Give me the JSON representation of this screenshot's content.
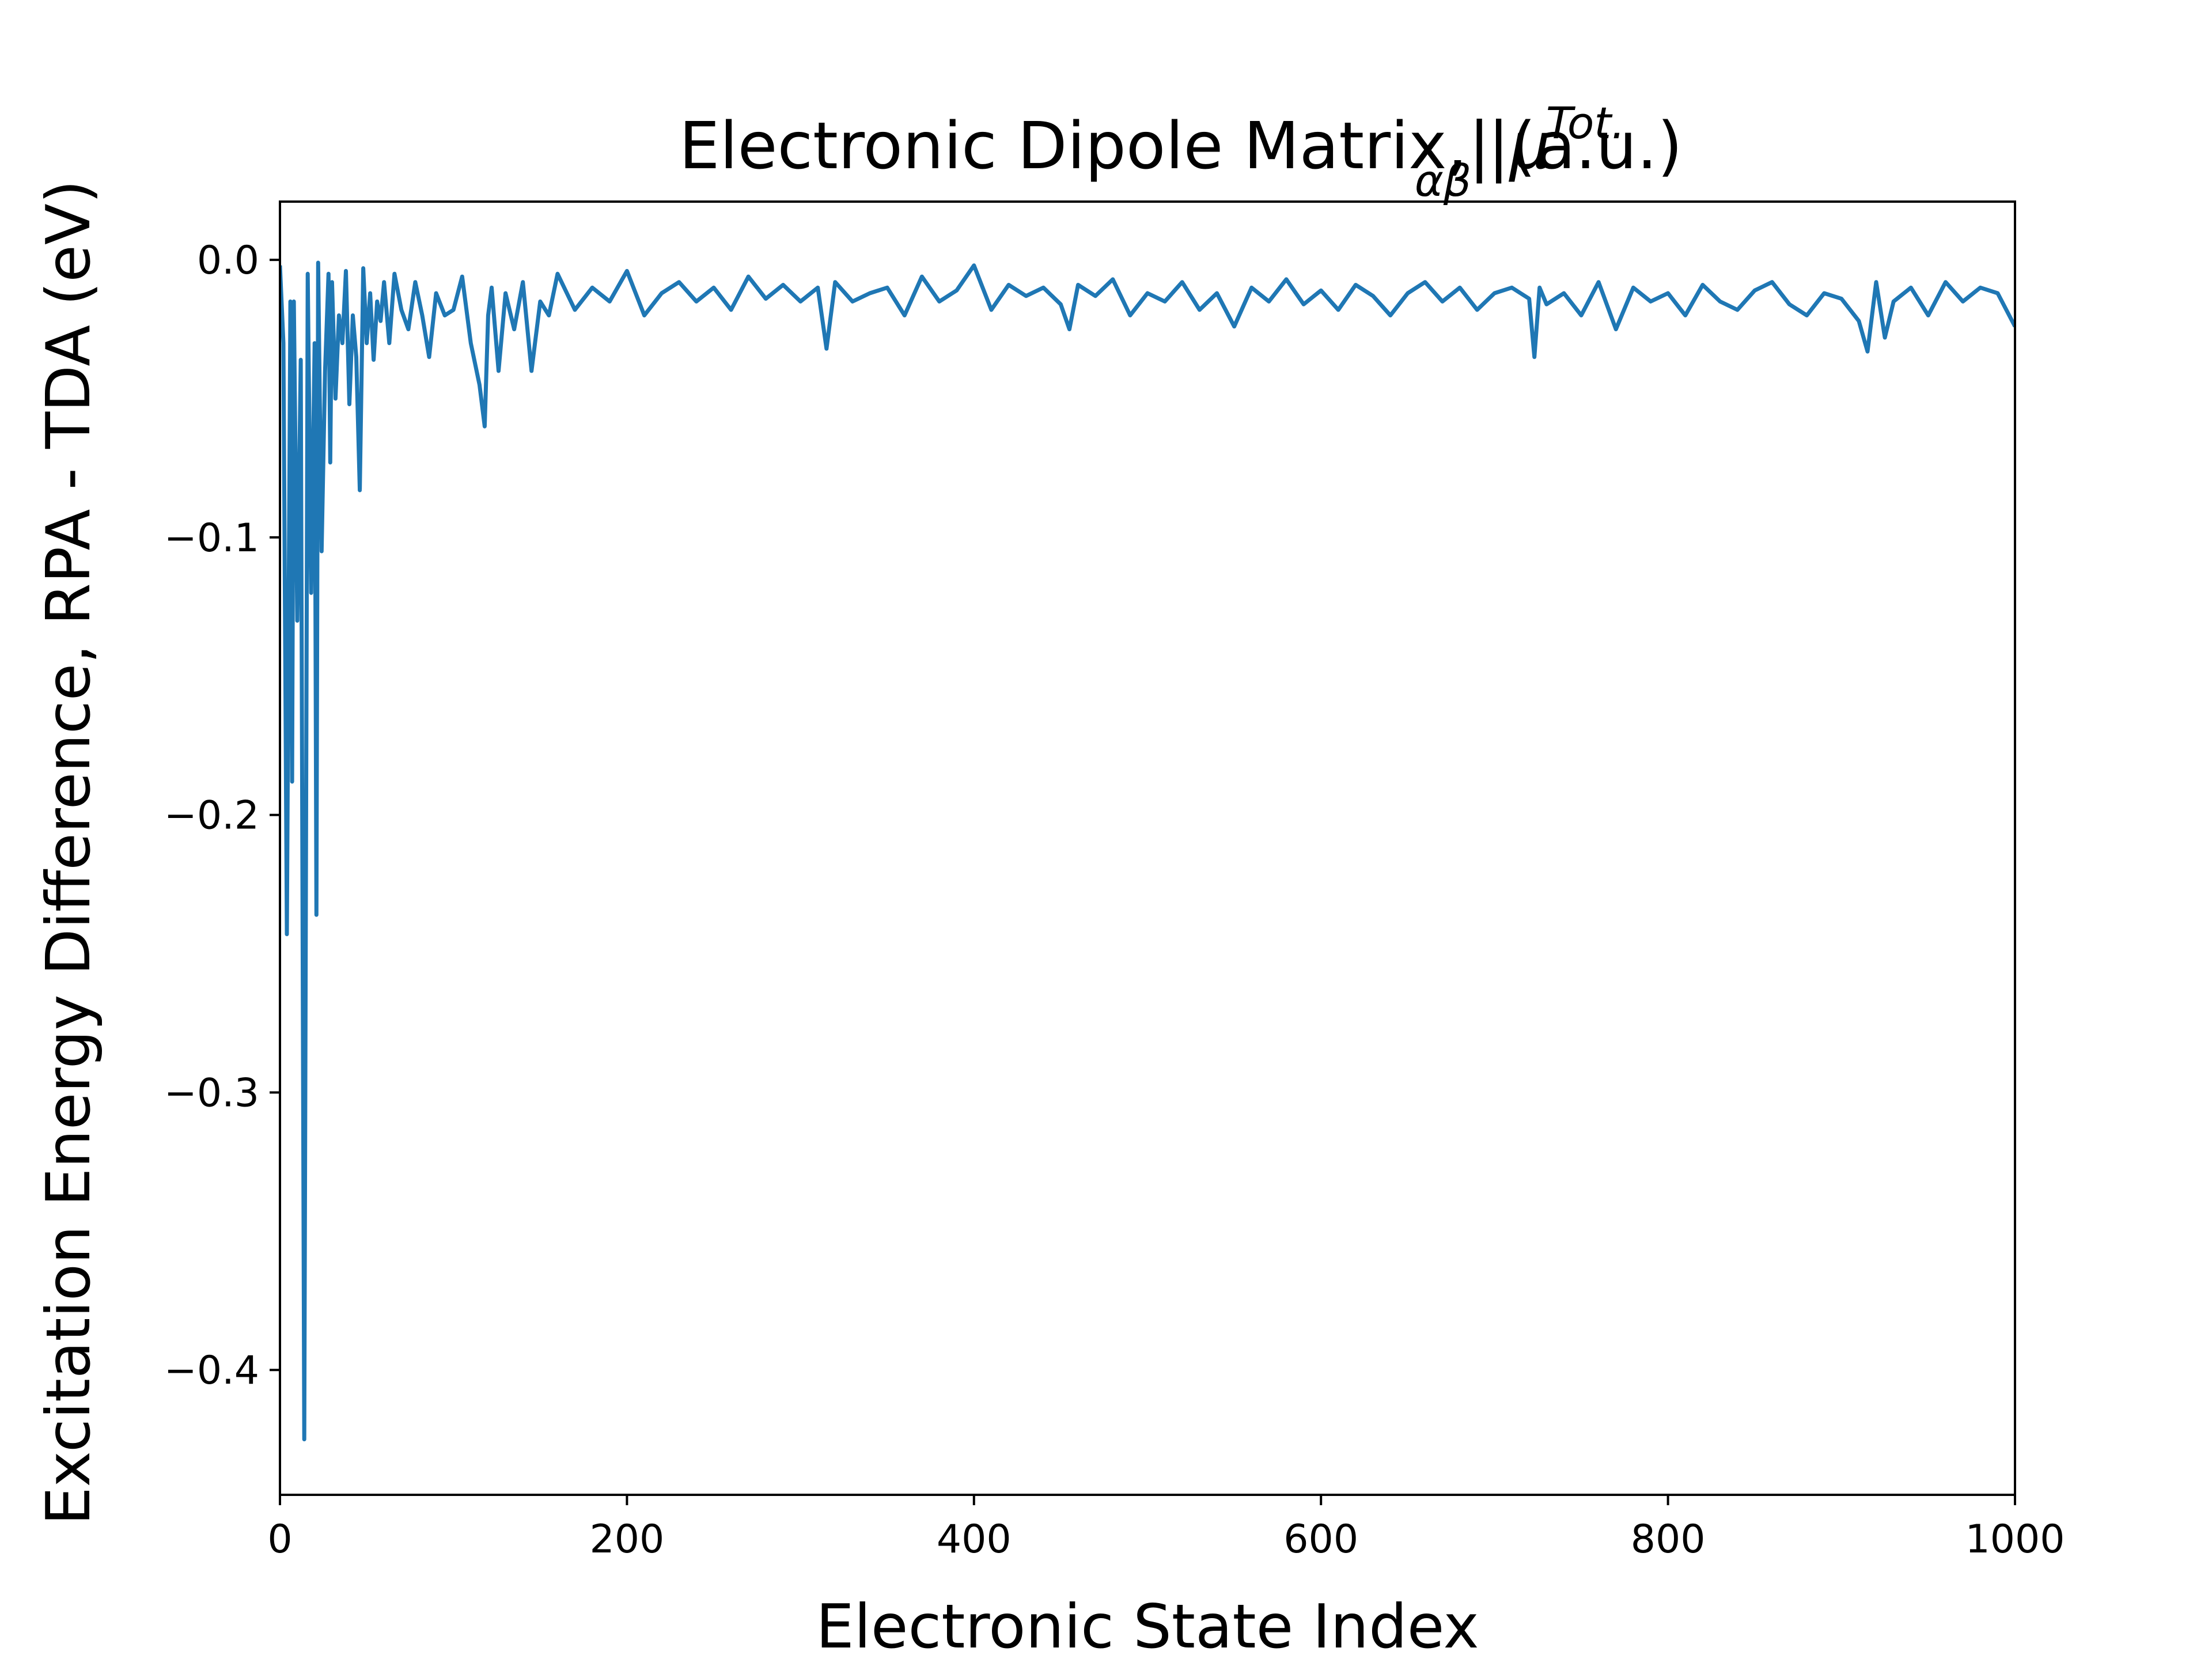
{
  "chart_data": {
    "type": "line",
    "title": {
      "prefix": "Electronic Dipole Matrix, |",
      "symbol": "μ",
      "sub": "αβ",
      "sup": "Tot.",
      "suffix": "| (a.u.)"
    },
    "xlabel": "Electronic State Index",
    "ylabel": "Excitation Energy Difference, RPA - TDA (eV)",
    "xlim": [
      0,
      1000
    ],
    "ylim": [
      -0.445,
      0.021
    ],
    "xticks": [
      0,
      200,
      400,
      600,
      800,
      1000
    ],
    "xtick_labels": [
      "0",
      "200",
      "400",
      "600",
      "800",
      "1000"
    ],
    "yticks": [
      0.0,
      -0.1,
      -0.2,
      -0.3,
      -0.4
    ],
    "ytick_labels": [
      "0.0",
      "−0.1",
      "−0.2",
      "−0.3",
      "−0.4"
    ],
    "grid": false,
    "line_color": "#1f77b4",
    "series": [
      {
        "x": [
          0,
          2,
          4,
          6,
          7,
          8,
          10,
          12,
          14,
          16,
          18,
          20,
          21,
          22,
          24,
          26,
          28,
          29,
          30,
          32,
          34,
          36,
          38,
          40,
          42,
          44,
          46,
          48,
          50,
          52,
          54,
          56,
          58,
          60,
          63,
          66,
          70,
          74,
          78,
          82,
          86,
          90,
          95,
          100,
          105,
          110,
          115,
          118,
          120,
          122,
          126,
          130,
          135,
          140,
          145,
          150,
          155,
          160,
          170,
          180,
          190,
          200,
          210,
          220,
          230,
          240,
          250,
          260,
          270,
          280,
          290,
          300,
          310,
          315,
          320,
          330,
          340,
          350,
          360,
          370,
          380,
          390,
          400,
          410,
          420,
          430,
          440,
          450,
          455,
          460,
          470,
          480,
          490,
          500,
          510,
          520,
          530,
          540,
          550,
          560,
          570,
          580,
          590,
          600,
          610,
          620,
          630,
          640,
          650,
          660,
          670,
          680,
          690,
          700,
          710,
          720,
          723,
          726,
          730,
          740,
          750,
          760,
          770,
          780,
          790,
          800,
          810,
          820,
          830,
          840,
          850,
          860,
          870,
          880,
          890,
          900,
          910,
          915,
          920,
          925,
          930,
          940,
          950,
          960,
          970,
          980,
          990,
          1000
        ],
        "y": [
          -0.002,
          -0.03,
          -0.243,
          -0.015,
          -0.188,
          -0.015,
          -0.13,
          -0.036,
          -0.425,
          -0.005,
          -0.12,
          -0.03,
          -0.236,
          -0.001,
          -0.105,
          -0.04,
          -0.005,
          -0.073,
          -0.008,
          -0.05,
          -0.02,
          -0.03,
          -0.004,
          -0.052,
          -0.02,
          -0.035,
          -0.083,
          -0.003,
          -0.03,
          -0.012,
          -0.036,
          -0.015,
          -0.022,
          -0.008,
          -0.03,
          -0.005,
          -0.018,
          -0.025,
          -0.008,
          -0.02,
          -0.035,
          -0.012,
          -0.02,
          -0.018,
          -0.006,
          -0.03,
          -0.045,
          -0.06,
          -0.02,
          -0.01,
          -0.04,
          -0.012,
          -0.025,
          -0.008,
          -0.04,
          -0.015,
          -0.02,
          -0.005,
          -0.018,
          -0.01,
          -0.015,
          -0.004,
          -0.02,
          -0.012,
          -0.008,
          -0.015,
          -0.01,
          -0.018,
          -0.006,
          -0.014,
          -0.009,
          -0.015,
          -0.01,
          -0.032,
          -0.008,
          -0.015,
          -0.012,
          -0.01,
          -0.02,
          -0.006,
          -0.015,
          -0.011,
          -0.002,
          -0.018,
          -0.009,
          -0.013,
          -0.01,
          -0.016,
          -0.025,
          -0.009,
          -0.013,
          -0.007,
          -0.02,
          -0.012,
          -0.015,
          -0.008,
          -0.018,
          -0.012,
          -0.024,
          -0.01,
          -0.015,
          -0.007,
          -0.016,
          -0.011,
          -0.018,
          -0.009,
          -0.013,
          -0.02,
          -0.012,
          -0.008,
          -0.015,
          -0.01,
          -0.018,
          -0.012,
          -0.01,
          -0.014,
          -0.035,
          -0.01,
          -0.016,
          -0.012,
          -0.02,
          -0.008,
          -0.025,
          -0.01,
          -0.015,
          -0.012,
          -0.02,
          -0.009,
          -0.015,
          -0.018,
          -0.011,
          -0.008,
          -0.016,
          -0.02,
          -0.012,
          -0.014,
          -0.022,
          -0.033,
          -0.008,
          -0.028,
          -0.015,
          -0.01,
          -0.02,
          -0.008,
          -0.015,
          -0.01,
          -0.012,
          -0.024
        ]
      }
    ]
  }
}
